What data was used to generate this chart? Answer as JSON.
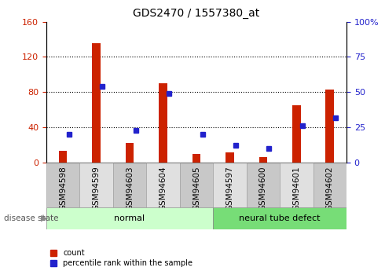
{
  "title": "GDS2470 / 1557380_at",
  "samples": [
    "GSM94598",
    "GSM94599",
    "GSM94603",
    "GSM94604",
    "GSM94605",
    "GSM94597",
    "GSM94600",
    "GSM94601",
    "GSM94602"
  ],
  "count_values": [
    13,
    136,
    22,
    90,
    10,
    12,
    6,
    65,
    83
  ],
  "percentile_values": [
    20,
    54,
    23,
    49,
    20,
    12,
    10,
    26,
    32
  ],
  "groups": [
    {
      "label": "normal",
      "start": 0,
      "end": 5,
      "color": "#ccffcc"
    },
    {
      "label": "neural tube defect",
      "start": 5,
      "end": 9,
      "color": "#77dd77"
    }
  ],
  "ylim_left": [
    0,
    160
  ],
  "ylim_right": [
    0,
    100
  ],
  "yticks_left": [
    0,
    40,
    80,
    120,
    160
  ],
  "yticks_right": [
    0,
    25,
    50,
    75,
    100
  ],
  "bar_color_red": "#cc2200",
  "bar_color_blue": "#2222cc",
  "disease_label": "disease state",
  "legend_count": "count",
  "legend_pct": "percentile rank within the sample",
  "title_fontsize": 10,
  "axis_fontsize": 8,
  "label_fontsize": 7.5
}
